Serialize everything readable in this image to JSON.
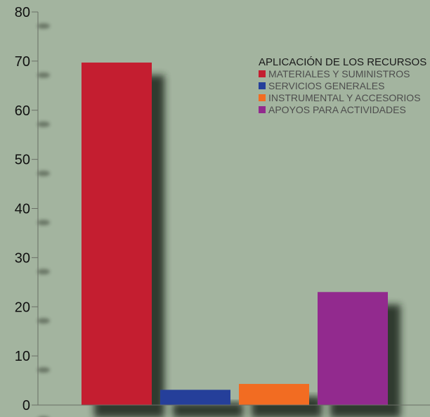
{
  "chart_data": {
    "type": "bar",
    "categories": [
      "MATERIALES Y SUMINISTROS",
      "SERVICIOS GENERALES",
      "INSTRUMENTAL Y ACCESORIOS",
      "APOYOS PARA ACTIVIDADES"
    ],
    "values": [
      69.7,
      3.1,
      4.3,
      23.0
    ],
    "colors": [
      "#c41e30",
      "#253f9a",
      "#f26c22",
      "#922a8e"
    ],
    "legend_title": "APLICACIÓN DE LOS RECURSOS",
    "legend_position": "top-right",
    "yticks": [
      0,
      10,
      20,
      30,
      40,
      50,
      60,
      70,
      80
    ],
    "ylim": [
      0,
      80
    ],
    "title": "",
    "xlabel": "",
    "ylabel": "",
    "grid": false,
    "background_color": "#a3b49f"
  }
}
